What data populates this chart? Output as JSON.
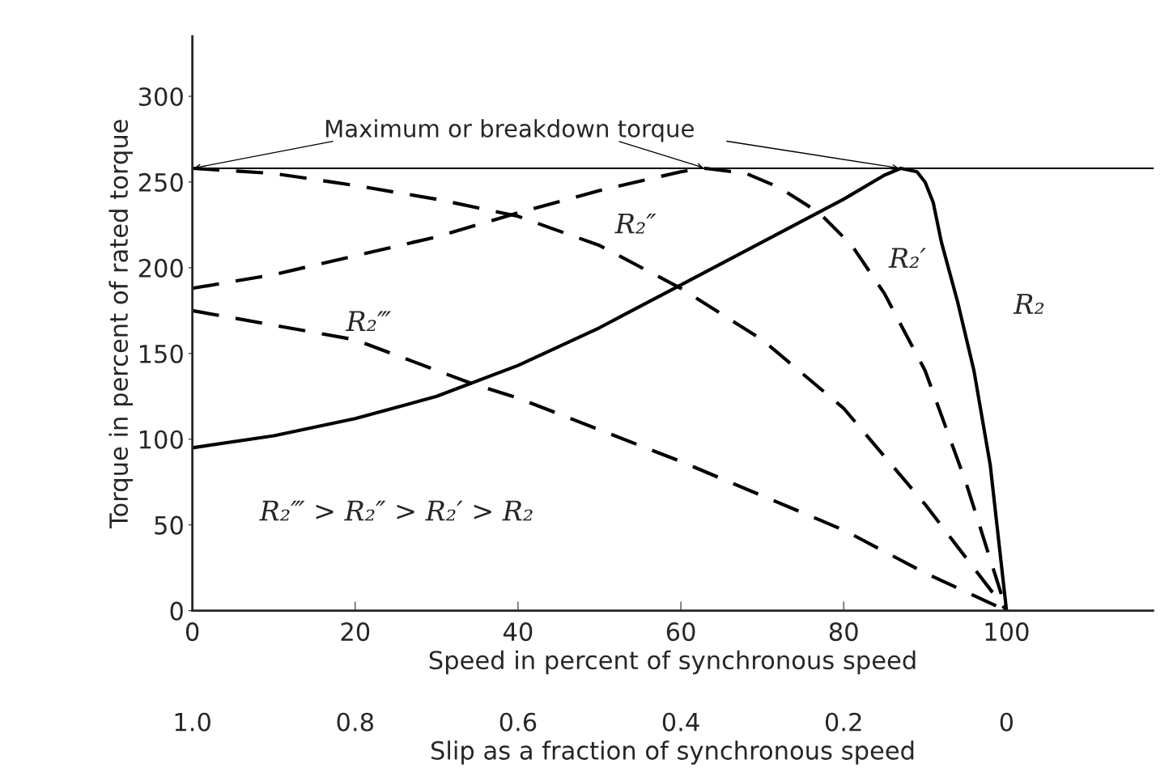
{
  "chart_data": {
    "type": "line",
    "xlabel": "Speed in percent of synchronous speed",
    "ylabel": "Torque in percent of rated torque",
    "x2label": "Slip as a fraction of synchronous speed",
    "xlim": [
      0,
      118
    ],
    "xticks": [
      0,
      20,
      40,
      60,
      80,
      100
    ],
    "ylim": [
      0,
      335
    ],
    "yticks": [
      0,
      50,
      100,
      150,
      200,
      250,
      300
    ],
    "x2lim": [
      1.0,
      -0.18
    ],
    "x2ticks": [
      {
        "value": 1.0,
        "label": "1.0"
      },
      0.8,
      0.6,
      0.4,
      0.2,
      0
    ],
    "grid": false,
    "legend": false,
    "marker": "none",
    "series": [
      {
        "name": "R₂",
        "color": "#000000",
        "line_style": "solid",
        "x": [
          0,
          10,
          20,
          30,
          40,
          50,
          60,
          70,
          80,
          85,
          87,
          89,
          90,
          91,
          92,
          94,
          96,
          98,
          100
        ],
        "values": [
          95,
          102,
          112,
          125,
          143,
          165,
          190,
          215,
          240,
          254,
          258,
          256,
          250,
          238,
          215,
          180,
          140,
          85,
          0
        ]
      },
      {
        "name": "R₂′",
        "color": "#000000",
        "line_style": "dashed",
        "x": [
          0,
          10,
          20,
          30,
          40,
          50,
          60,
          63,
          68,
          72,
          77,
          81,
          85,
          90,
          95,
          100
        ],
        "values": [
          188,
          196,
          207,
          218,
          232,
          245,
          256,
          258,
          255,
          247,
          232,
          213,
          185,
          140,
          75,
          0
        ]
      },
      {
        "name": "R₂″",
        "color": "#000000",
        "line_style": "dashed",
        "x": [
          0,
          10,
          20,
          30,
          40,
          50,
          60,
          70,
          80,
          90,
          100
        ],
        "values": [
          258,
          255,
          248,
          240,
          230,
          213,
          188,
          158,
          118,
          62,
          0
        ]
      },
      {
        "name": "R₂‴",
        "color": "#000000",
        "line_style": "dashed",
        "x": [
          0,
          20,
          34,
          40,
          60,
          80,
          90,
          100
        ],
        "values": [
          175,
          158,
          133,
          124,
          87,
          47,
          22,
          0
        ]
      }
    ],
    "ref_lines": [
      {
        "axis": "y",
        "value": 258,
        "label": "Maximum or breakdown torque",
        "color": "#000000",
        "line_style": "solid"
      }
    ],
    "annotations": [
      "R₂‴ > R₂″ > R₂′ > R₂"
    ]
  }
}
